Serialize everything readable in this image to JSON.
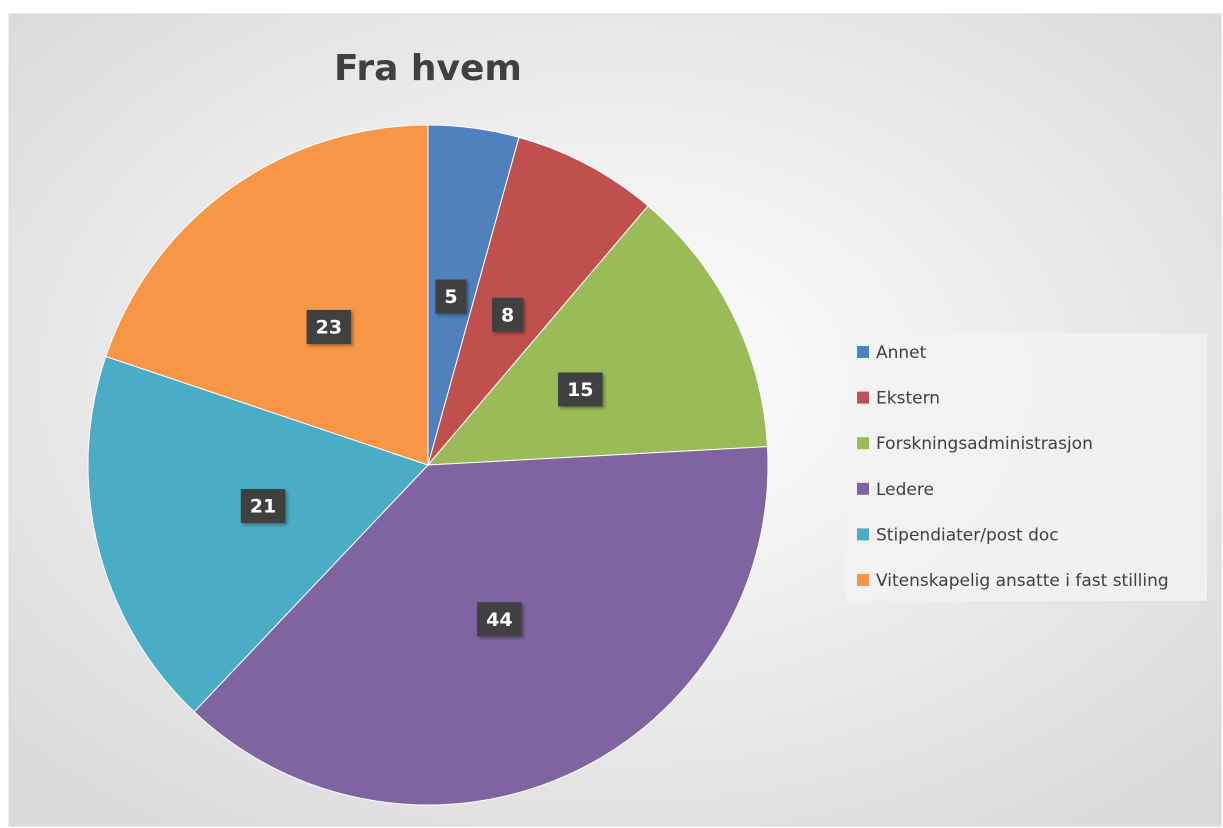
{
  "chart_data": {
    "type": "pie",
    "title": "Fra hvem",
    "categories": [
      "Annet",
      "Ekstern",
      "Forskningsadministrasjon",
      "Ledere",
      "Stipendiater/post doc",
      "Vitenskapelig ansatte i fast stilling"
    ],
    "values": [
      5,
      8,
      15,
      44,
      21,
      23
    ],
    "colors": [
      "#4f81bd",
      "#c0504d",
      "#9bbb59",
      "#8064a2",
      "#4bacc6",
      "#f79646"
    ],
    "legend": "right"
  }
}
